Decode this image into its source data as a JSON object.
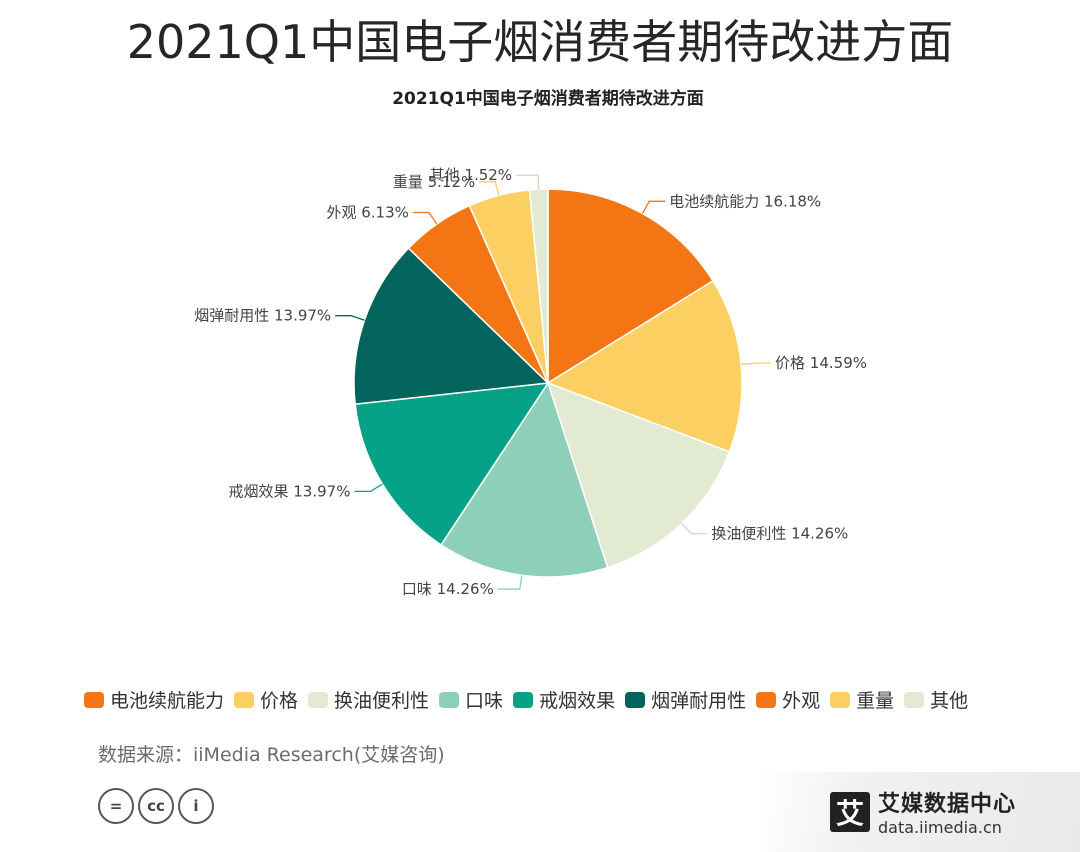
{
  "page_title": "2021Q1中国电子烟消费者期待改进方面",
  "chart_data": {
    "type": "pie",
    "title": "2021Q1中国电子烟消费者期待改进方面",
    "unit": "%",
    "slices": [
      {
        "label": "电池续航能力",
        "value": 16.18,
        "color": "#F47514"
      },
      {
        "label": "价格",
        "value": 14.59,
        "color": "#FBCF61"
      },
      {
        "label": "换油便利性",
        "value": 14.26,
        "color": "#E3EAD2"
      },
      {
        "label": "口味",
        "value": 14.26,
        "color": "#8ECFBA"
      },
      {
        "label": "戒烟效果",
        "value": 13.97,
        "color": "#05A288"
      },
      {
        "label": "烟弹耐用性",
        "value": 13.97,
        "color": "#03645E"
      },
      {
        "label": "外观",
        "value": 6.13,
        "color": "#F47514"
      },
      {
        "label": "重量",
        "value": 5.12,
        "color": "#FBCF61"
      },
      {
        "label": "其他",
        "value": 1.52,
        "color": "#E3EAD2"
      }
    ],
    "legend_position": "bottom"
  },
  "legend": [
    {
      "label": "电池续航能力",
      "color": "#F47514"
    },
    {
      "label": "价格",
      "color": "#FBCF61"
    },
    {
      "label": "换油便利性",
      "color": "#E3EAD2"
    },
    {
      "label": "口味",
      "color": "#8ECFBA"
    },
    {
      "label": "戒烟效果",
      "color": "#05A288"
    },
    {
      "label": "烟弹耐用性",
      "color": "#03645E"
    },
    {
      "label": "外观",
      "color": "#F47514"
    },
    {
      "label": "重量",
      "color": "#FBCF61"
    },
    {
      "label": "其他",
      "color": "#E3EAD2"
    }
  ],
  "source_text": "数据来源：iiMedia Research(艾媒咨询)",
  "license_icons": [
    "equals-icon",
    "cc-icon",
    "person-icon"
  ],
  "license_glyphs": [
    "=",
    "cc",
    "i"
  ],
  "brand": {
    "mark": "艾",
    "name": "艾媒数据中心",
    "url": "data.iimedia.cn"
  }
}
